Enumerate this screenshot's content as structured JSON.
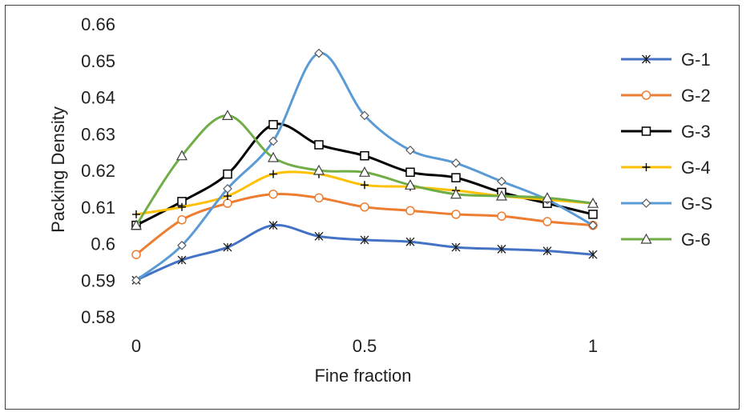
{
  "chart_data": {
    "type": "line",
    "title": "",
    "xlabel": "Fine fraction",
    "ylabel": "Packing Density",
    "xlim": [
      0,
      1
    ],
    "ylim": [
      0.58,
      0.66
    ],
    "xticks": [
      0,
      0.5,
      1
    ],
    "xtick_labels": [
      "0",
      "0.5",
      "1"
    ],
    "yticks": [
      0.58,
      0.59,
      0.6,
      0.61,
      0.62,
      0.63,
      0.64,
      0.65,
      0.66
    ],
    "ytick_labels": [
      "0.58",
      "0.59",
      "0.6",
      "0.61",
      "0.62",
      "0.63",
      "0.64",
      "0.65",
      "0.66"
    ],
    "legend_position": "right",
    "grid": false,
    "series": [
      {
        "name": "G-1",
        "color": "#4472C4",
        "marker": "asterisk",
        "x": [
          0,
          0.1,
          0.2,
          0.3,
          0.4,
          0.5,
          0.6,
          0.7,
          0.8,
          0.9,
          1
        ],
        "y": [
          0.59,
          0.5955,
          0.599,
          0.605,
          0.602,
          0.601,
          0.6005,
          0.599,
          0.5985,
          0.598,
          0.597
        ]
      },
      {
        "name": "G-2",
        "color": "#ED7D31",
        "marker": "circle",
        "x": [
          0,
          0.1,
          0.2,
          0.3,
          0.4,
          0.5,
          0.6,
          0.7,
          0.8,
          0.9,
          1
        ],
        "y": [
          0.597,
          0.6065,
          0.611,
          0.6135,
          0.6125,
          0.61,
          0.609,
          0.608,
          0.6075,
          0.606,
          0.605
        ]
      },
      {
        "name": "G-3",
        "color": "#000000",
        "marker": "square",
        "x": [
          0,
          0.1,
          0.2,
          0.3,
          0.4,
          0.5,
          0.6,
          0.7,
          0.8,
          0.9,
          1
        ],
        "y": [
          0.605,
          0.6115,
          0.619,
          0.6325,
          0.627,
          0.624,
          0.6195,
          0.618,
          0.614,
          0.611,
          0.608
        ]
      },
      {
        "name": "G-4",
        "color": "#FFC000",
        "marker": "plus",
        "x": [
          0,
          0.1,
          0.2,
          0.3,
          0.4,
          0.5,
          0.6,
          0.7,
          0.8,
          0.9,
          1
        ],
        "y": [
          0.608,
          0.61,
          0.613,
          0.619,
          0.619,
          0.616,
          0.6155,
          0.6145,
          0.613,
          0.612,
          0.611
        ]
      },
      {
        "name": "G-S",
        "color": "#5B9BD5",
        "marker": "diamond",
        "x": [
          0,
          0.1,
          0.2,
          0.3,
          0.4,
          0.5,
          0.6,
          0.7,
          0.8,
          0.9,
          1
        ],
        "y": [
          0.59,
          0.5995,
          0.615,
          0.628,
          0.652,
          0.635,
          0.6255,
          0.622,
          0.617,
          0.612,
          0.605
        ]
      },
      {
        "name": "G-6",
        "color": "#70AD47",
        "marker": "triangle",
        "x": [
          0,
          0.1,
          0.2,
          0.3,
          0.4,
          0.5,
          0.6,
          0.7,
          0.8,
          0.9,
          1
        ],
        "y": [
          0.605,
          0.624,
          0.635,
          0.6235,
          0.62,
          0.6195,
          0.616,
          0.6135,
          0.613,
          0.6125,
          0.611
        ]
      }
    ]
  }
}
